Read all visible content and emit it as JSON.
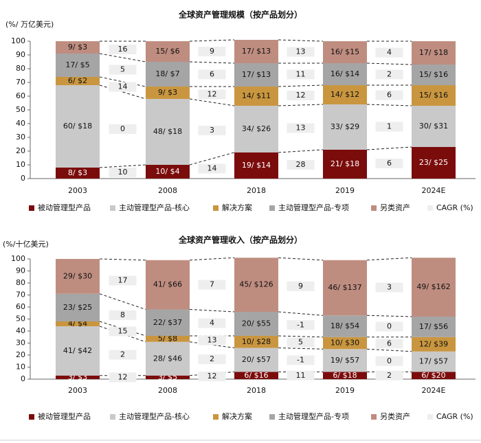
{
  "chart_data": [
    {
      "type": "bar",
      "stacked": true,
      "title": "全球资产管理规模（按产品划分）",
      "ylabel": "(%/ 万亿美元)",
      "categories": [
        "2003",
        "2008",
        "2018",
        "2019",
        "2024E"
      ],
      "series": [
        {
          "name": "被动管理型产品",
          "color": "#7b0c0c",
          "values": [
            8,
            10,
            19,
            21,
            23
          ],
          "value_labels": [
            "8/ $3",
            "10/ $4",
            "19/ $14",
            "21/ $18",
            "23/ $25"
          ]
        },
        {
          "name": "主动管理型产品-核心",
          "color": "#c9c9c9",
          "values": [
            60,
            48,
            34,
            33,
            30
          ],
          "value_labels": [
            "60/ $18",
            "48/ $18",
            "34/ $26",
            "33/ $29",
            "30/ $31"
          ]
        },
        {
          "name": "解决方案",
          "color": "#c9963f",
          "values": [
            6,
            9,
            14,
            14,
            15
          ],
          "value_labels": [
            "6/ $2",
            "9/ $3",
            "14/ $11",
            "14/ $12",
            "15/ $16"
          ]
        },
        {
          "name": "主动管理型产品-专项",
          "color": "#a5a5a5",
          "values": [
            17,
            18,
            17,
            16,
            15
          ],
          "value_labels": [
            "17/ $5",
            "18/ $7",
            "17/ $13",
            "16/ $14",
            "15/ $16"
          ]
        },
        {
          "name": "另类资产",
          "color": "#bf8d80",
          "values": [
            9,
            15,
            17,
            16,
            17
          ],
          "value_labels": [
            "9/ $3",
            "15/ $6",
            "17/ $13",
            "16/ $15",
            "17/ $18"
          ]
        }
      ],
      "cagr": {
        "name": "CAGR (%)",
        "color": "#eeeeee",
        "values": [
          [
            10,
            0,
            14,
            5,
            16
          ],
          [
            14,
            3,
            12,
            6,
            9
          ],
          [
            28,
            13,
            12,
            11,
            13
          ],
          [
            6,
            1,
            6,
            2,
            4
          ]
        ]
      },
      "ylim": [
        0,
        100
      ],
      "yticks": [
        0,
        10,
        20,
        30,
        40,
        50,
        60,
        70,
        80,
        90,
        100
      ]
    },
    {
      "type": "bar",
      "stacked": true,
      "title": "全球资产管理收入（按产品划分）",
      "ylabel": "(%/十亿美元)",
      "categories": [
        "2003",
        "2008",
        "2018",
        "2019",
        "2024E"
      ],
      "series": [
        {
          "name": "被动管理型产品",
          "color": "#7b0c0c",
          "values": [
            3,
            3,
            6,
            6,
            6
          ],
          "value_labels": [
            "3/ $3",
            "3/ $5",
            "6/ $16",
            "6/ $18",
            "6/ $20"
          ]
        },
        {
          "name": "主动管理型产品-核心",
          "color": "#c9c9c9",
          "values": [
            41,
            28,
            20,
            19,
            17
          ],
          "value_labels": [
            "41/ $42",
            "28/ $46",
            "20/ $57",
            "19/ $57",
            "17/ $57"
          ]
        },
        {
          "name": "解决方案",
          "color": "#c9963f",
          "values": [
            4,
            5,
            10,
            10,
            12
          ],
          "value_labels": [
            "4/ $4",
            "5/ $8",
            "10/ $28",
            "10/ $30",
            "12/ $39"
          ]
        },
        {
          "name": "主动管理型产品-专项",
          "color": "#a5a5a5",
          "values": [
            23,
            22,
            20,
            18,
            17
          ],
          "value_labels": [
            "23/ $25",
            "22/ $37",
            "20/ $55",
            "18/ $54",
            "17/ $56"
          ]
        },
        {
          "name": "另类资产",
          "color": "#bf8d80",
          "values": [
            29,
            41,
            45,
            46,
            49
          ],
          "value_labels": [
            "29/ $30",
            "41/ $66",
            "45/ $126",
            "46/ $137",
            "49/ $162"
          ]
        }
      ],
      "cagr": {
        "name": "CAGR (%)",
        "color": "#eeeeee",
        "values": [
          [
            12,
            2,
            15,
            8,
            17
          ],
          [
            12,
            2,
            13,
            4,
            7
          ],
          [
            11,
            -1,
            5,
            -1,
            9
          ],
          [
            2,
            0,
            6,
            0,
            3
          ]
        ]
      },
      "ylim": [
        0,
        100
      ],
      "yticks": [
        0,
        10,
        20,
        30,
        40,
        50,
        60,
        70,
        80,
        90,
        100
      ]
    }
  ]
}
